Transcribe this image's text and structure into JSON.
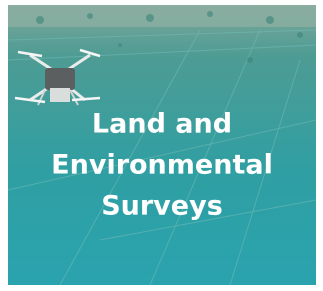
{
  "card": {
    "title_lines": [
      "Land and",
      "Environmental",
      "Surveys"
    ]
  }
}
